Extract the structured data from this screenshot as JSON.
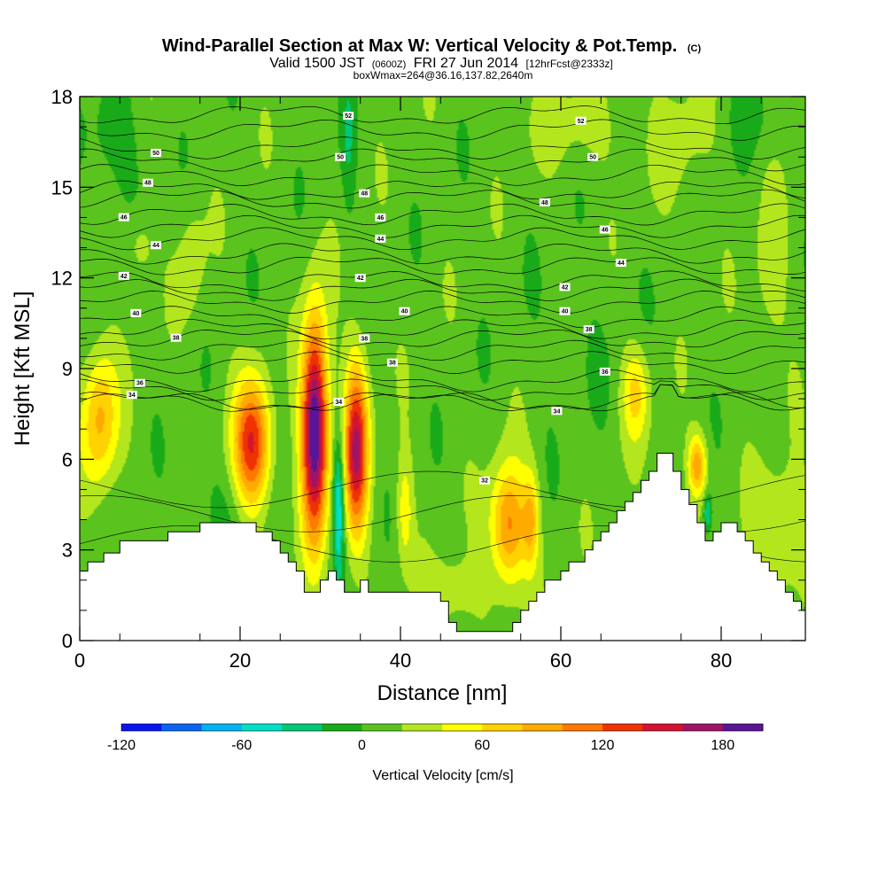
{
  "chart_data": {
    "type": "heatmap",
    "title": "Wind-Parallel Section at Max W: Vertical Velocity & Pot.Temp.",
    "title_suffix": "(C)",
    "subtitle": {
      "valid_a": "Valid 1500 JST",
      "valid_small": "(0600Z)",
      "valid_b": "FRI 27 Jun 2014",
      "forecast": "[12hrFcst@2333z]"
    },
    "subtitle2": "boxWmax=264@36.16,137.82,2640m",
    "xlabel": "Distance [nm]",
    "ylabel": "Height [Kft MSL]",
    "xlim": [
      0,
      90.5
    ],
    "ylim": [
      0,
      18
    ],
    "x_ticks": [
      "0",
      "20",
      "40",
      "60",
      "80"
    ],
    "x_tick_values": [
      0,
      20,
      40,
      60,
      80
    ],
    "y_ticks": [
      "0",
      "3",
      "6",
      "9",
      "12",
      "15",
      "18"
    ],
    "y_tick_values": [
      0,
      3,
      6,
      9,
      12,
      15,
      18
    ],
    "colorbar": {
      "title": "Vertical Velocity [cm/s]",
      "min": -120,
      "max": 200,
      "step": 20,
      "tick_labels": [
        "-120",
        "-60",
        "0",
        "60",
        "120",
        "180"
      ],
      "tick_values": [
        -120,
        -60,
        0,
        60,
        120,
        180
      ],
      "colors": [
        "#0a14f0",
        "#0a64f0",
        "#00b4f0",
        "#00e0c8",
        "#00c878",
        "#19aa19",
        "#5ac31e",
        "#b4e61e",
        "#ffff00",
        "#ffd200",
        "#ffaa00",
        "#ff7800",
        "#f03200",
        "#d21432",
        "#a01464",
        "#5a1496"
      ]
    },
    "background_value": 10,
    "velocity_features": [
      {
        "x": 2.5,
        "y": 7.3,
        "sx": 1.6,
        "sy": 1.6,
        "w": 75
      },
      {
        "x": 21.5,
        "y": 6.5,
        "sx": 1.6,
        "sy": 1.5,
        "w": 130
      },
      {
        "x": 29.3,
        "y": 7.0,
        "sx": 1.15,
        "sy": 2.5,
        "w": 200
      },
      {
        "x": 32.3,
        "y": 4.5,
        "sx": 0.5,
        "sy": 1.6,
        "w": -80
      },
      {
        "x": 34.5,
        "y": 6.3,
        "sx": 1.05,
        "sy": 2.0,
        "w": 150
      },
      {
        "x": 40.5,
        "y": 4.3,
        "sx": 0.7,
        "sy": 1.3,
        "w": 45
      },
      {
        "x": 53.5,
        "y": 3.8,
        "sx": 1.6,
        "sy": 1.4,
        "w": 100
      },
      {
        "x": 56.3,
        "y": 4.0,
        "sx": 0.7,
        "sy": 1.1,
        "w": 60
      },
      {
        "x": 69.3,
        "y": 8.2,
        "sx": 1.2,
        "sy": 1.1,
        "w": 55
      },
      {
        "x": 77.0,
        "y": 5.8,
        "sx": 0.8,
        "sy": 0.7,
        "w": 85
      },
      {
        "x": 78.3,
        "y": 4.2,
        "sx": 0.35,
        "sy": 0.45,
        "w": -55
      },
      {
        "x": 18.0,
        "y": 4.3,
        "sx": 3.0,
        "sy": 1.2,
        "w": -12
      },
      {
        "x": 46.5,
        "y": 1.5,
        "sx": 2.5,
        "sy": 0.9,
        "w": 25
      },
      {
        "x": 24.5,
        "y": 10.2,
        "sx": 0.8,
        "sy": 2.0,
        "w": -14
      },
      {
        "x": 4.0,
        "y": 16.5,
        "sx": 2.5,
        "sy": 1.4,
        "w": -22
      },
      {
        "x": 7.5,
        "y": 13.0,
        "sx": 1.2,
        "sy": 0.8,
        "w": 25
      },
      {
        "x": 14.0,
        "y": 12.5,
        "sx": 1.2,
        "sy": 1.5,
        "w": 22
      },
      {
        "x": 33.5,
        "y": 16.5,
        "sx": 0.6,
        "sy": 1.8,
        "w": -25
      },
      {
        "x": 62.0,
        "y": 17.0,
        "sx": 4.0,
        "sy": 1.0,
        "w": 20
      },
      {
        "x": 75.0,
        "y": 16.5,
        "sx": 2.5,
        "sy": 1.5,
        "w": 18
      },
      {
        "x": 84.0,
        "y": 17.5,
        "sx": 2.0,
        "sy": 1.0,
        "w": -15
      },
      {
        "x": 86.0,
        "y": 12.0,
        "sx": 1.5,
        "sy": 2.0,
        "w": 22
      },
      {
        "x": 87.5,
        "y": 3.5,
        "sx": 2.5,
        "sy": 1.5,
        "w": 35
      },
      {
        "x": 62.5,
        "y": 10.0,
        "sx": 5.0,
        "sy": 2.0,
        "w": -6
      }
    ],
    "terrain": {
      "x": [
        0,
        1,
        2,
        3,
        4,
        5,
        6,
        7,
        8,
        9,
        10,
        11,
        12,
        13,
        14,
        15,
        16,
        17,
        18,
        19,
        20,
        21,
        22,
        23,
        24,
        25,
        26,
        27,
        28,
        29,
        30,
        31,
        32,
        33,
        34,
        35,
        36,
        37,
        38,
        39,
        40,
        41,
        42,
        43,
        44,
        45,
        46,
        47,
        48,
        49,
        50,
        51,
        52,
        53,
        54,
        55,
        56,
        57,
        58,
        59,
        60,
        61,
        62,
        63,
        64,
        65,
        66,
        67,
        68,
        69,
        70,
        71,
        72,
        73,
        74,
        75,
        76,
        77,
        78,
        79,
        80,
        81,
        82,
        83,
        84,
        85,
        86,
        87,
        88,
        89,
        90,
        90.5
      ],
      "y": [
        2.3,
        2.6,
        2.6,
        2.9,
        2.9,
        3.3,
        3.3,
        3.3,
        3.3,
        3.3,
        3.3,
        3.6,
        3.6,
        3.6,
        3.6,
        3.9,
        3.9,
        3.9,
        3.9,
        3.9,
        3.9,
        3.9,
        3.6,
        3.6,
        3.3,
        2.9,
        2.6,
        2.3,
        1.6,
        1.6,
        2.0,
        2.3,
        2.0,
        1.6,
        1.6,
        2.0,
        1.6,
        1.6,
        1.6,
        1.6,
        1.6,
        1.6,
        1.6,
        1.6,
        1.6,
        1.3,
        0.6,
        0.3,
        0.3,
        0.3,
        0.3,
        0.3,
        0.3,
        0.3,
        0.6,
        1.0,
        1.3,
        1.6,
        2.0,
        2.0,
        2.3,
        2.6,
        2.6,
        3.0,
        3.3,
        3.6,
        3.9,
        4.3,
        4.6,
        4.9,
        5.3,
        5.6,
        6.2,
        6.2,
        5.6,
        5.0,
        4.5,
        3.9,
        3.3,
        3.6,
        3.9,
        3.9,
        3.6,
        3.3,
        2.9,
        2.6,
        2.3,
        2.0,
        1.6,
        1.3,
        1.0,
        0.6
      ]
    },
    "isentropes": [
      {
        "label": "34",
        "base": 7.9,
        "amp": 0.0,
        "lx": 6.5
      },
      {
        "label": "",
        "base": 7.9,
        "amp": 0.0,
        "lx": -1
      },
      {
        "label": "",
        "base": 8.3,
        "amp": 0.0,
        "lx": -1
      },
      {
        "label": "36",
        "base": 8.6,
        "amp": 0.0,
        "lx": 7.5
      },
      {
        "label": "",
        "base": 9.2,
        "amp": 0.0,
        "lx": -1
      },
      {
        "label": "",
        "base": 9.6,
        "amp": 0.0,
        "lx": -1
      },
      {
        "label": "38",
        "base": 10.0,
        "amp": 0.0,
        "lx": 12.0
      },
      {
        "label": "",
        "base": 10.3,
        "amp": 0.0,
        "lx": -1
      },
      {
        "label": "40",
        "base": 10.7,
        "amp": 0.0,
        "lx": 7.0
      },
      {
        "label": "",
        "base": 11.2,
        "amp": 0.0,
        "lx": -1
      },
      {
        "label": "",
        "base": 11.6,
        "amp": 0.0,
        "lx": -1
      },
      {
        "label": "42",
        "base": 11.9,
        "amp": 0.0,
        "lx": 5.5
      },
      {
        "label": "",
        "base": 12.4,
        "amp": 0.0,
        "lx": -1
      },
      {
        "label": "",
        "base": 12.8,
        "amp": 0.0,
        "lx": -1
      },
      {
        "label": "44",
        "base": 13.3,
        "amp": 0.0,
        "lx": 9.5
      },
      {
        "label": "",
        "base": 13.7,
        "amp": 0.0,
        "lx": -1
      },
      {
        "label": "46",
        "base": 14.1,
        "amp": 0.0,
        "lx": 5.5
      },
      {
        "label": "",
        "base": 14.6,
        "amp": 0.0,
        "lx": -1
      },
      {
        "label": "48",
        "base": 14.9,
        "amp": 0.0,
        "lx": 8.5
      },
      {
        "label": "",
        "base": 15.4,
        "amp": 0.0,
        "lx": -1
      },
      {
        "label": "",
        "base": 15.9,
        "amp": 0.0,
        "lx": -1
      },
      {
        "label": "50",
        "base": 16.3,
        "amp": 0.0,
        "lx": 9.5
      },
      {
        "label": "",
        "base": 16.9,
        "amp": 0.0,
        "lx": -1
      },
      {
        "label": "52",
        "base": 17.4,
        "amp": 0.0,
        "lx": 33.5
      }
    ],
    "labels_extra": [
      {
        "label": "32",
        "x": 50.5,
        "y": 5.3
      },
      {
        "label": "34",
        "x": 32.3,
        "y": 7.9
      },
      {
        "label": "34",
        "x": 59.5,
        "y": 7.6
      },
      {
        "label": "36",
        "x": 65.5,
        "y": 8.9
      },
      {
        "label": "38",
        "x": 35.5,
        "y": 10.0
      },
      {
        "label": "38",
        "x": 39.0,
        "y": 9.2
      },
      {
        "label": "38",
        "x": 63.5,
        "y": 10.3
      },
      {
        "label": "40",
        "x": 40.5,
        "y": 10.9
      },
      {
        "label": "40",
        "x": 60.5,
        "y": 10.9
      },
      {
        "label": "42",
        "x": 35.0,
        "y": 12.0
      },
      {
        "label": "42",
        "x": 60.5,
        "y": 11.7
      },
      {
        "label": "44",
        "x": 37.5,
        "y": 13.3
      },
      {
        "label": "44",
        "x": 67.5,
        "y": 12.5
      },
      {
        "label": "46",
        "x": 37.5,
        "y": 14.0
      },
      {
        "label": "46",
        "x": 65.5,
        "y": 13.6
      },
      {
        "label": "48",
        "x": 35.5,
        "y": 14.8
      },
      {
        "label": "48",
        "x": 58.0,
        "y": 14.5
      },
      {
        "label": "50",
        "x": 32.5,
        "y": 16.0
      },
      {
        "label": "50",
        "x": 64.0,
        "y": 16.0
      },
      {
        "label": "52",
        "x": 62.5,
        "y": 17.2
      }
    ]
  }
}
